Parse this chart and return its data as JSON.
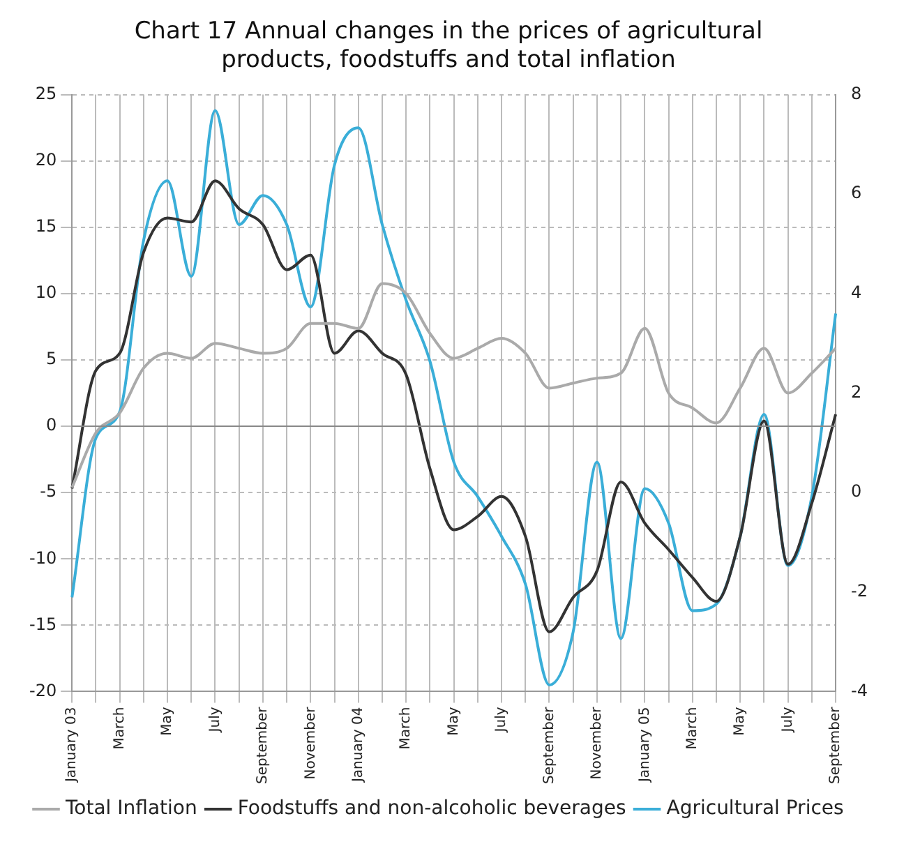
{
  "chart_data": {
    "type": "line",
    "title": "Chart 17 Annual changes in the prices of agricultural products, foodstuffs and total inflation",
    "categories": [
      "January 03",
      null,
      "March",
      null,
      "May",
      null,
      "July",
      null,
      "September",
      null,
      "November",
      null,
      "January 04",
      null,
      "March",
      null,
      "May",
      null,
      "July",
      null,
      "September",
      null,
      "November",
      null,
      "January 05",
      null,
      "March",
      null,
      "May",
      null,
      "July",
      null,
      "September"
    ],
    "series": [
      {
        "name": "Agricultural Prices",
        "color": "#3aaed8",
        "values": [
          -12.9,
          -0.9,
          1.1,
          14,
          18.5,
          11.3,
          23.8,
          15.2,
          17.4,
          15.2,
          9,
          19.7,
          22.5,
          15.2,
          9.5,
          4.9,
          -2.7,
          -5.3,
          -8.3,
          -11.9,
          -19.5,
          -15.5,
          -2.7,
          -16,
          -4.7,
          -7.3,
          -13.9,
          -13.4,
          -8.3,
          0.9,
          -10.5,
          -5.3,
          8.5
        ]
      },
      {
        "name": "Foodstuffs and non-alcoholic beverages",
        "color": "#333333",
        "values": [
          -4.7,
          4.2,
          5.5,
          13.1,
          15.7,
          15.4,
          18.5,
          16.4,
          15.2,
          11.8,
          12.9,
          5.5,
          7.2,
          5.5,
          3.9,
          -3.2,
          -7.8,
          -6.8,
          -5.3,
          -8.3,
          -15.5,
          -12.9,
          -10.9,
          -4.2,
          -7.3,
          -9.3,
          -11.4,
          -13.2,
          -8.3,
          0.4,
          -10.4,
          -5.8,
          0.9
        ]
      },
      {
        "name": "Total Inflation",
        "color": "#aaaaaa",
        "axis": "y2",
        "values": [
          0.1,
          1.2,
          1.6,
          2.5,
          2.8,
          2.7,
          3,
          2.9,
          2.8,
          2.9,
          3.4,
          3.4,
          3.3,
          4.2,
          4,
          3.2,
          2.7,
          2.9,
          3.1,
          2.8,
          2.1,
          2.2,
          2.3,
          2.4,
          3.3,
          2,
          1.7,
          1.4,
          2.1,
          2.9,
          2,
          2.4,
          2.9
        ]
      }
    ],
    "ylim": [
      -20,
      25
    ],
    "yticks": [
      -20,
      -15,
      -10,
      -5,
      0,
      5,
      10,
      15,
      20,
      25
    ],
    "y2lim": [
      -4,
      8
    ],
    "y2ticks": [
      -4,
      -2,
      0,
      2,
      4,
      6,
      8
    ],
    "ref_lines": [
      {
        "axis": "y",
        "value": 0,
        "color": "#888888"
      }
    ],
    "grid": true,
    "legend": "bottom",
    "line_style": "solid",
    "marker": "none"
  }
}
